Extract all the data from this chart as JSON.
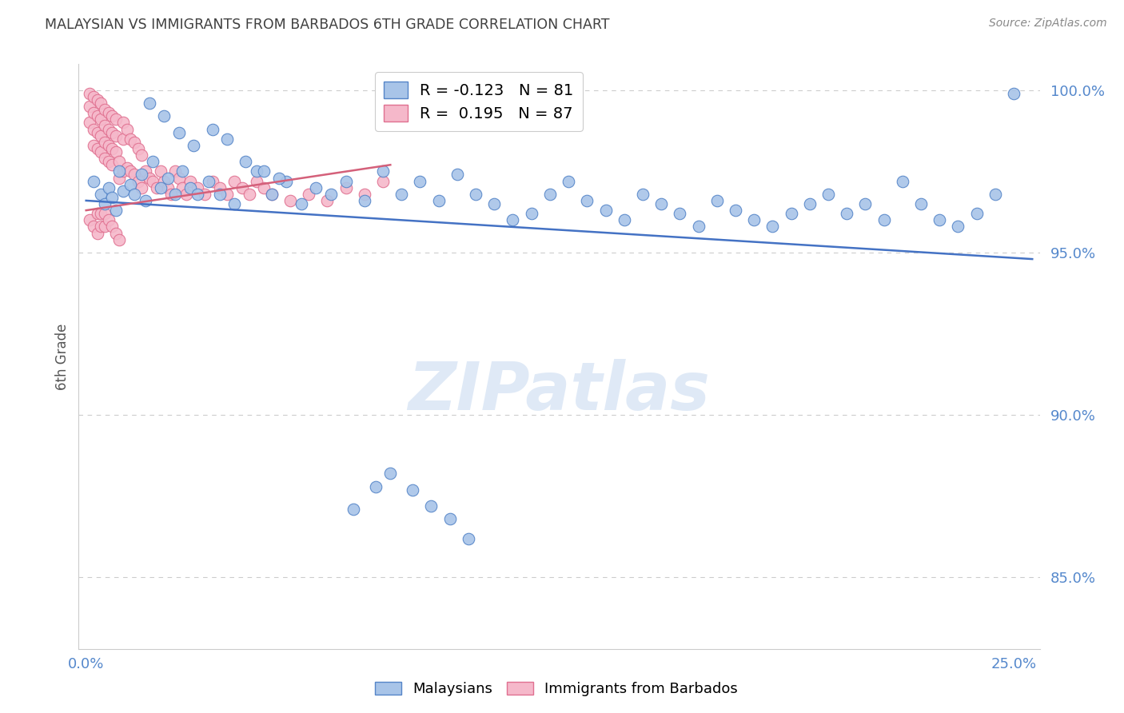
{
  "title": "MALAYSIAN VS IMMIGRANTS FROM BARBADOS 6TH GRADE CORRELATION CHART",
  "source": "Source: ZipAtlas.com",
  "ylabel": "6th Grade",
  "ylim": [
    0.828,
    1.008
  ],
  "xlim": [
    -0.002,
    0.257
  ],
  "yticks": [
    0.85,
    0.9,
    0.95,
    1.0
  ],
  "ytick_labels": [
    "85.0%",
    "90.0%",
    "95.0%",
    "100.0%"
  ],
  "xticks": [
    0.0,
    0.05,
    0.1,
    0.15,
    0.2,
    0.25
  ],
  "xtick_labels": [
    "0.0%",
    "",
    "",
    "",
    "",
    "25.0%"
  ],
  "blue_R": -0.123,
  "blue_N": 81,
  "pink_R": 0.195,
  "pink_N": 87,
  "legend_label_blue": "Malaysians",
  "legend_label_pink": "Immigrants from Barbados",
  "blue_color": "#a8c4e8",
  "pink_color": "#f5b8ca",
  "blue_edge_color": "#5585c8",
  "pink_edge_color": "#e07090",
  "blue_line_color": "#4472c4",
  "pink_line_color": "#d4607a",
  "axis_color": "#cccccc",
  "grid_color": "#cccccc",
  "title_color": "#404040",
  "source_color": "#888888",
  "ylabel_color": "#555555",
  "ytick_color": "#5588cc",
  "xtick_color": "#5588cc",
  "watermark": "ZIPatlas",
  "blue_line_x": [
    0.0,
    0.255
  ],
  "blue_line_y": [
    0.966,
    0.948
  ],
  "pink_line_x": [
    0.0,
    0.082
  ],
  "pink_line_y": [
    0.963,
    0.977
  ],
  "blue_x": [
    0.002,
    0.004,
    0.005,
    0.006,
    0.007,
    0.008,
    0.009,
    0.01,
    0.012,
    0.013,
    0.015,
    0.016,
    0.018,
    0.02,
    0.022,
    0.024,
    0.026,
    0.028,
    0.03,
    0.033,
    0.036,
    0.04,
    0.043,
    0.046,
    0.05,
    0.054,
    0.058,
    0.062,
    0.066,
    0.07,
    0.075,
    0.08,
    0.085,
    0.09,
    0.095,
    0.1,
    0.105,
    0.11,
    0.115,
    0.12,
    0.125,
    0.13,
    0.135,
    0.14,
    0.145,
    0.15,
    0.155,
    0.16,
    0.165,
    0.17,
    0.175,
    0.18,
    0.185,
    0.19,
    0.195,
    0.2,
    0.205,
    0.21,
    0.215,
    0.22,
    0.225,
    0.23,
    0.235,
    0.24,
    0.245,
    0.25,
    0.017,
    0.021,
    0.025,
    0.029,
    0.034,
    0.038,
    0.048,
    0.052,
    0.072,
    0.078,
    0.082,
    0.088,
    0.093,
    0.098,
    0.103
  ],
  "blue_y": [
    0.972,
    0.968,
    0.965,
    0.97,
    0.967,
    0.963,
    0.975,
    0.969,
    0.971,
    0.968,
    0.974,
    0.966,
    0.978,
    0.97,
    0.973,
    0.968,
    0.975,
    0.97,
    0.968,
    0.972,
    0.968,
    0.965,
    0.978,
    0.975,
    0.968,
    0.972,
    0.965,
    0.97,
    0.968,
    0.972,
    0.966,
    0.975,
    0.968,
    0.972,
    0.966,
    0.974,
    0.968,
    0.965,
    0.96,
    0.962,
    0.968,
    0.972,
    0.966,
    0.963,
    0.96,
    0.968,
    0.965,
    0.962,
    0.958,
    0.966,
    0.963,
    0.96,
    0.958,
    0.962,
    0.965,
    0.968,
    0.962,
    0.965,
    0.96,
    0.972,
    0.965,
    0.96,
    0.958,
    0.962,
    0.968,
    0.999,
    0.996,
    0.992,
    0.987,
    0.983,
    0.988,
    0.985,
    0.975,
    0.973,
    0.871,
    0.878,
    0.882,
    0.877,
    0.872,
    0.868,
    0.862
  ],
  "pink_x": [
    0.001,
    0.001,
    0.001,
    0.002,
    0.002,
    0.002,
    0.002,
    0.003,
    0.003,
    0.003,
    0.003,
    0.004,
    0.004,
    0.004,
    0.004,
    0.005,
    0.005,
    0.005,
    0.005,
    0.006,
    0.006,
    0.006,
    0.006,
    0.007,
    0.007,
    0.007,
    0.007,
    0.008,
    0.008,
    0.008,
    0.009,
    0.009,
    0.01,
    0.01,
    0.01,
    0.011,
    0.011,
    0.012,
    0.012,
    0.013,
    0.013,
    0.014,
    0.014,
    0.015,
    0.015,
    0.016,
    0.017,
    0.018,
    0.019,
    0.02,
    0.021,
    0.022,
    0.023,
    0.024,
    0.025,
    0.026,
    0.027,
    0.028,
    0.03,
    0.032,
    0.034,
    0.036,
    0.038,
    0.04,
    0.042,
    0.044,
    0.046,
    0.048,
    0.05,
    0.055,
    0.06,
    0.065,
    0.07,
    0.075,
    0.08,
    0.001,
    0.002,
    0.003,
    0.003,
    0.004,
    0.004,
    0.005,
    0.005,
    0.006,
    0.007,
    0.008,
    0.009
  ],
  "pink_y": [
    0.999,
    0.995,
    0.99,
    0.998,
    0.993,
    0.988,
    0.983,
    0.997,
    0.992,
    0.987,
    0.982,
    0.996,
    0.991,
    0.986,
    0.981,
    0.994,
    0.989,
    0.984,
    0.979,
    0.993,
    0.988,
    0.983,
    0.978,
    0.992,
    0.987,
    0.982,
    0.977,
    0.991,
    0.986,
    0.981,
    0.978,
    0.973,
    0.99,
    0.985,
    0.975,
    0.988,
    0.976,
    0.985,
    0.975,
    0.984,
    0.974,
    0.982,
    0.972,
    0.98,
    0.97,
    0.975,
    0.973,
    0.972,
    0.97,
    0.975,
    0.972,
    0.97,
    0.968,
    0.975,
    0.973,
    0.97,
    0.968,
    0.972,
    0.97,
    0.968,
    0.972,
    0.97,
    0.968,
    0.972,
    0.97,
    0.968,
    0.972,
    0.97,
    0.968,
    0.966,
    0.968,
    0.966,
    0.97,
    0.968,
    0.972,
    0.96,
    0.958,
    0.962,
    0.956,
    0.962,
    0.958,
    0.962,
    0.958,
    0.96,
    0.958,
    0.956,
    0.954
  ]
}
